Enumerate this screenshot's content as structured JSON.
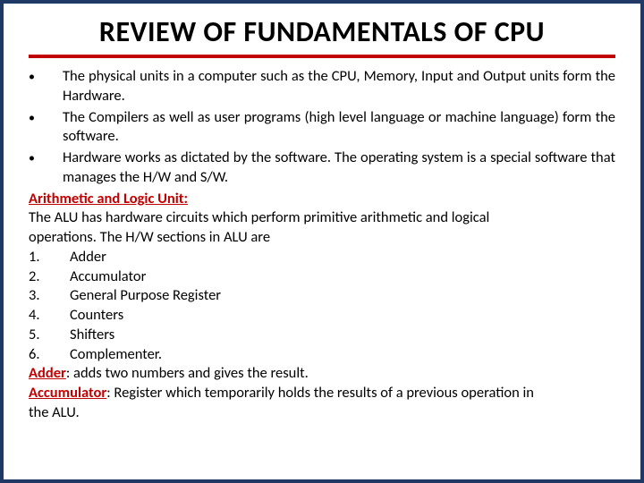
{
  "colors": {
    "border": "#1f3864",
    "accent": "#c00000",
    "text": "#000000",
    "background": "#ffffff"
  },
  "typography": {
    "title_fontsize": 32,
    "body_fontsize": 16.5,
    "font_family": "Calibri"
  },
  "title": "REVIEW OF FUNDAMENTALS OF CPU",
  "bullets": [
    "The physical units in a computer such as the CPU, Memory, Input and Output units form the Hardware.",
    "The Compilers as well as user programs (high level language or machine language) form the software.",
    "Hardware works as dictated by the software. The operating system is a special software that manages the H/W and S/W."
  ],
  "section_heading": "Arithmetic and Logic Unit:",
  "alu_intro_line1": "The ALU has hardware circuits which perform primitive arithmetic and logical",
  "alu_intro_line2": "operations. The H/W sections in ALU are",
  "numbered": [
    {
      "n": "1.",
      "label": "Adder"
    },
    {
      "n": "2.",
      "label": "Accumulator"
    },
    {
      "n": "3.",
      "label": "General Purpose Register"
    },
    {
      "n": "4.",
      "label": "Counters"
    },
    {
      "n": "5.",
      "label": "Shifters"
    },
    {
      "n": "6.",
      "label": "Complementer."
    }
  ],
  "defs": {
    "adder_term": "Adder",
    "adder_text": ": adds two numbers and gives the result.",
    "acc_term": "Accumulator",
    "acc_text_line1": ": Register which temporarily holds the results of a previous operation in",
    "acc_text_line2": "the ALU."
  }
}
